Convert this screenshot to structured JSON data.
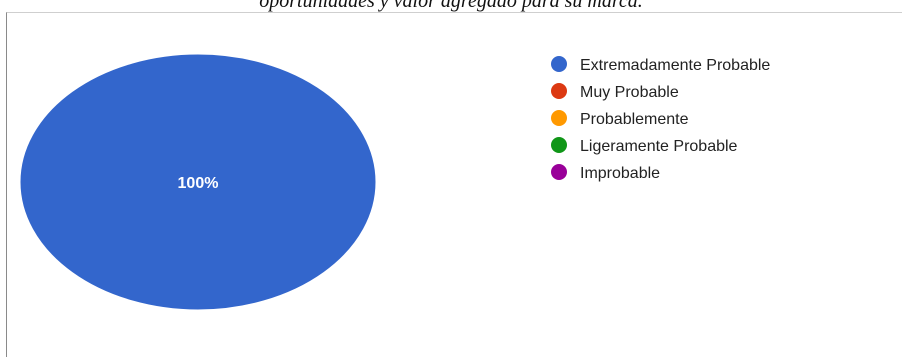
{
  "caption": "oportunidades y valor agregado para su marca.",
  "chart_data": {
    "type": "pie",
    "categories": [
      "Extremadamente Probable",
      "Muy Probable",
      "Probablemente",
      "Ligeramente Probable",
      "Improbable"
    ],
    "values": [
      100,
      0,
      0,
      0,
      0
    ],
    "slice_labels": [
      "100%",
      "",
      "",
      "",
      ""
    ],
    "colors": [
      "#3366cc",
      "#dc3912",
      "#ff9900",
      "#109618",
      "#990099"
    ],
    "legend_position": "right"
  }
}
